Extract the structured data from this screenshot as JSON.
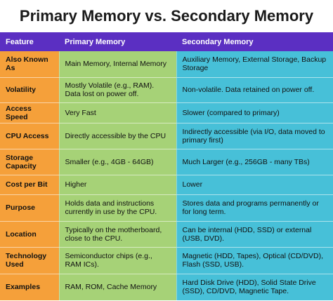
{
  "title": "Primary Memory vs. Secondary Memory",
  "colors": {
    "header_bg": "#5b2fc2",
    "feature_col": "#f5a03a",
    "primary_col": "#a6d277",
    "secondary_col": "#47c0d8"
  },
  "table": {
    "headers": [
      "Feature",
      "Primary Memory",
      "Secondary Memory"
    ],
    "rows": [
      {
        "feature": "Also Known As",
        "primary": "Main Memory, Internal Memory",
        "secondary": "Auxiliary Memory, External Storage, Backup Storage"
      },
      {
        "feature": "Volatility",
        "primary": "Mostly Volatile (e.g., RAM). Data lost on power off.",
        "secondary": "Non-volatile. Data retained on power off."
      },
      {
        "feature": "Access Speed",
        "primary": "Very Fast",
        "secondary": "Slower (compared to primary)"
      },
      {
        "feature": "CPU Access",
        "primary": "Directly accessible by the CPU",
        "secondary": "Indirectly accessible (via I/O, data moved to primary first)"
      },
      {
        "feature": "Storage Capacity",
        "primary": "Smaller (e.g., 4GB - 64GB)",
        "secondary": "Much Larger (e.g., 256GB - many TBs)"
      },
      {
        "feature": "Cost per Bit",
        "primary": "Higher",
        "secondary": "Lower"
      },
      {
        "feature": "Purpose",
        "primary": "Holds data and instructions currently in use by the CPU.",
        "secondary": "Stores data and programs permanently or for long term."
      },
      {
        "feature": "Location",
        "primary": "Typically on the motherboard, close to the CPU.",
        "secondary": "Can be internal (HDD, SSD) or external (USB, DVD)."
      },
      {
        "feature": "Technology Used",
        "primary": "Semiconductor chips (e.g., RAM ICs).",
        "secondary": "Magnetic (HDD, Tapes), Optical (CD/DVD), Flash (SSD, USB)."
      },
      {
        "feature": "Examples",
        "primary": "RAM, ROM, Cache Memory",
        "secondary": "Hard Disk Drive (HDD), Solid State Drive (SSD), CD/DVD, Magnetic Tape."
      }
    ]
  }
}
